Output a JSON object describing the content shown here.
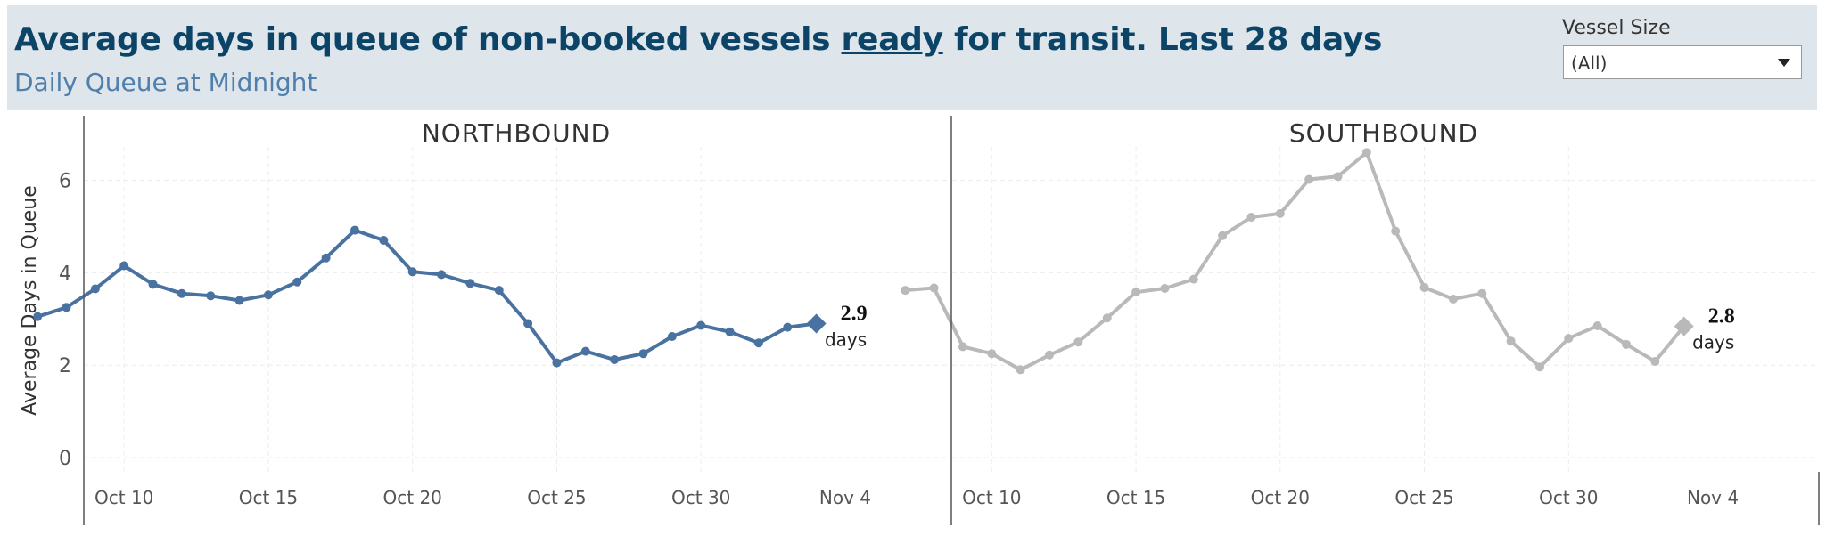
{
  "header": {
    "title_before": "Average days in queue of non-booked vessels ",
    "title_underlined": "ready",
    "title_after": " for transit. Last 28 days",
    "subtitle": "Daily Queue at Midnight"
  },
  "filter": {
    "label": "Vessel Size",
    "value": "(All)"
  },
  "chart_data": {
    "type": "line",
    "ylabel": "Average Days in Queue",
    "ylim": [
      -0.5,
      7.3
    ],
    "yticks": [
      0,
      2,
      4,
      6
    ],
    "x_ticks": [
      "Oct 10",
      "Oct 15",
      "Oct 20",
      "Oct 25",
      "Oct 30",
      "Nov 4"
    ],
    "x": [
      "Oct 7",
      "Oct 8",
      "Oct 9",
      "Oct 10",
      "Oct 11",
      "Oct 12",
      "Oct 13",
      "Oct 14",
      "Oct 15",
      "Oct 16",
      "Oct 17",
      "Oct 18",
      "Oct 19",
      "Oct 20",
      "Oct 21",
      "Oct 22",
      "Oct 23",
      "Oct 24",
      "Oct 25",
      "Oct 26",
      "Oct 27",
      "Oct 28",
      "Oct 29",
      "Oct 30",
      "Oct 31",
      "Nov 1",
      "Nov 2",
      "Nov 3"
    ],
    "grid": true,
    "panels": [
      {
        "title": "NORTHBOUND",
        "color": "#4a72a0",
        "values": [
          3.05,
          3.25,
          3.65,
          4.15,
          3.75,
          3.55,
          3.5,
          3.4,
          3.52,
          3.8,
          4.32,
          4.92,
          4.7,
          4.02,
          3.96,
          3.77,
          3.62,
          2.9,
          2.05,
          2.3,
          2.12,
          2.25,
          2.62,
          2.86,
          2.72,
          2.48,
          2.82,
          2.9
        ],
        "last_value_label": "2.9",
        "last_value_unit": "days"
      },
      {
        "title": "SOUTHBOUND",
        "color": "#b9b9b9",
        "values": [
          3.62,
          3.67,
          2.4,
          2.25,
          1.9,
          2.22,
          2.5,
          3.02,
          3.58,
          3.66,
          3.86,
          4.8,
          5.2,
          5.28,
          6.02,
          6.08,
          6.6,
          4.9,
          3.68,
          3.43,
          3.55,
          2.52,
          1.96,
          2.58,
          2.85,
          2.45,
          2.08,
          2.84
        ],
        "last_value_label": "2.8",
        "last_value_unit": "days"
      }
    ]
  }
}
